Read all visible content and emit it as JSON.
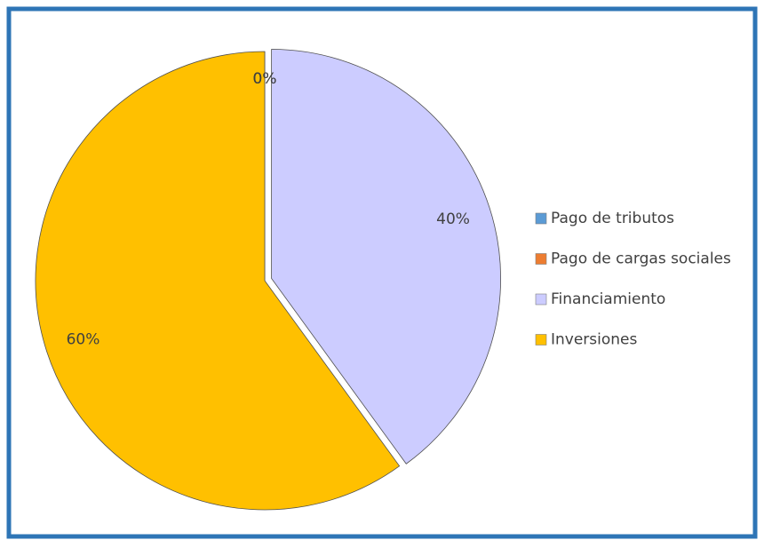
{
  "chart_data": {
    "type": "pie",
    "categories": [
      "Pago de tributos",
      "Pago de cargas sociales",
      "Financiamiento",
      "Inversiones"
    ],
    "values": [
      0,
      0,
      40,
      60
    ],
    "value_labels": [
      "0%",
      "0%",
      "40%",
      "60%"
    ],
    "colors": [
      "#5b9bd5",
      "#ed7d31",
      "#ccccff",
      "#ffc000"
    ],
    "exploded": [
      false,
      false,
      true,
      false
    ],
    "legend": "right"
  }
}
